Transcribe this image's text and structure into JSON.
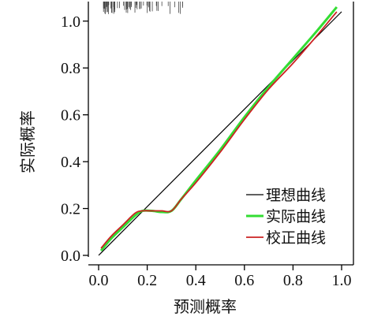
{
  "chart_data": {
    "type": "line",
    "xlabel": "预测概率",
    "ylabel": "实际概率",
    "xlim": [
      0.0,
      1.0
    ],
    "ylim": [
      0.0,
      1.08
    ],
    "x_ticks": [
      "0.0",
      "0.2",
      "0.4",
      "0.6",
      "0.8",
      "1.0"
    ],
    "y_ticks": [
      "0.0",
      "0.2",
      "0.4",
      "0.6",
      "0.8",
      "1.0"
    ],
    "legend_position": "bottom-right",
    "rug_marks": true,
    "series": [
      {
        "name": "理想曲线",
        "color": "#000000",
        "x": [
          0.0,
          1.0
        ],
        "y": [
          0.0,
          1.04
        ]
      },
      {
        "name": "实际曲线",
        "color": "#33dd33",
        "x": [
          0.01,
          0.05,
          0.1,
          0.15,
          0.18,
          0.22,
          0.26,
          0.3,
          0.34,
          0.4,
          0.5,
          0.6,
          0.7,
          0.8,
          0.9,
          0.98
        ],
        "y": [
          0.02,
          0.07,
          0.12,
          0.17,
          0.19,
          0.19,
          0.185,
          0.19,
          0.24,
          0.32,
          0.45,
          0.59,
          0.72,
          0.84,
          0.96,
          1.06
        ]
      },
      {
        "name": "校正曲线",
        "color": "#cc2222",
        "x": [
          0.01,
          0.05,
          0.1,
          0.15,
          0.18,
          0.22,
          0.26,
          0.3,
          0.34,
          0.4,
          0.5,
          0.6,
          0.7,
          0.8,
          0.9,
          0.98
        ],
        "y": [
          0.03,
          0.08,
          0.13,
          0.18,
          0.19,
          0.19,
          0.19,
          0.19,
          0.24,
          0.31,
          0.44,
          0.58,
          0.71,
          0.82,
          0.94,
          1.04
        ]
      }
    ]
  }
}
